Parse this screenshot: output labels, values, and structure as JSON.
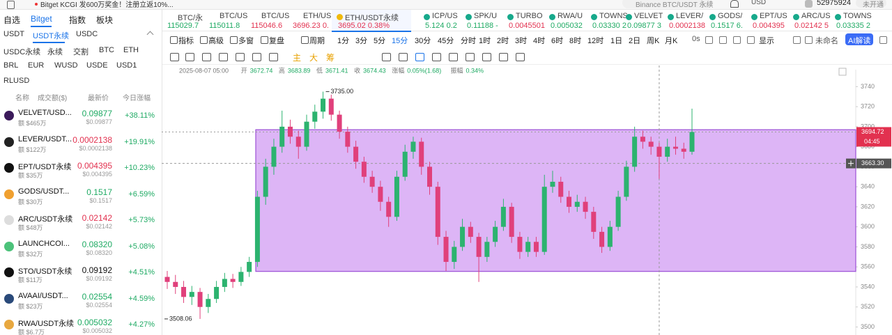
{
  "banner": {
    "notice": "Bitget KCGI 发600万奖金！注册立返10%...",
    "search": "Binance BTC/USDT 永续",
    "currency": "USD",
    "user_id": "52975924",
    "status": "未开通"
  },
  "sidebar": {
    "tabs": [
      "自选",
      "Bitget",
      "指数",
      "板块"
    ],
    "markets": [
      [
        "USDT",
        "USDT永续",
        "USDC"
      ],
      [
        "USDC永续",
        "永续",
        "交割",
        "BTC",
        "ETH"
      ],
      [
        "BRL",
        "EUR",
        "WUSD",
        "USDE",
        "USD1"
      ],
      [
        "RLUSD"
      ]
    ],
    "columns": [
      "名称",
      "成交额($)",
      "最新价",
      "今日涨幅"
    ],
    "list": [
      {
        "symbol": "VELVET/USD...",
        "volume": "额 $465万",
        "price": "0.09877",
        "price_usd": "$0.09877",
        "change": "+38.11%",
        "price_color": "#1eaa63",
        "icon": "#3b1a5a"
      },
      {
        "symbol": "LEVER/USDT...",
        "volume": "额 $122万",
        "price": "0.0002138",
        "price_usd": "$0.0002138",
        "change": "+19.91%",
        "price_color": "#e2314f",
        "icon": "#222222"
      },
      {
        "symbol": "EPT/USDT永续",
        "volume": "额 $35万",
        "price": "0.004395",
        "price_usd": "$0.004395",
        "change": "+10.23%",
        "price_color": "#e2314f",
        "icon": "#111111"
      },
      {
        "symbol": "GODS/USDT...",
        "volume": "额 $30万",
        "price": "0.1517",
        "price_usd": "$0.1517",
        "change": "+6.59%",
        "price_color": "#1eaa63",
        "icon": "#f0a030"
      },
      {
        "symbol": "ARC/USDT永续",
        "volume": "额 $48万",
        "price": "0.02142",
        "price_usd": "$0.02142",
        "change": "+5.73%",
        "price_color": "#e2314f",
        "icon": "#dddddd"
      },
      {
        "symbol": "LAUNCHCOI...",
        "volume": "额 $32万",
        "price": "0.08320",
        "price_usd": "$0.08320",
        "change": "+5.08%",
        "price_color": "#1eaa63",
        "icon": "#4cc27a"
      },
      {
        "symbol": "STO/USDT永续",
        "volume": "额 $11万",
        "price": "0.09192",
        "price_usd": "$0.09192",
        "change": "+4.51%",
        "price_color": "#111111",
        "icon": "#111111"
      },
      {
        "symbol": "AVAAI/USDT...",
        "volume": "额 $23万",
        "price": "0.02554",
        "price_usd": "$0.02554",
        "change": "+4.59%",
        "price_color": "#1eaa63",
        "icon": "#2a4a7a"
      },
      {
        "symbol": "RWA/USDT永续",
        "volume": "额 $6.7万",
        "price": "0.005032",
        "price_usd": "$0.005032",
        "change": "+4.27%",
        "price_color": "#1eaa63",
        "icon": "#e8a840"
      }
    ]
  },
  "tickers": [
    {
      "symbol": "BTC/永",
      "price": "115029.7",
      "color": "#1eaa63"
    },
    {
      "symbol": "BTC/US",
      "price": "115011.8",
      "color": "#1eaa63"
    },
    {
      "symbol": "BTC/US",
      "price": "115046.6",
      "color": "#e2314f"
    },
    {
      "symbol": "ETH/US",
      "price": "3696.23 0.",
      "color": "#e2314f"
    },
    {
      "symbol": "ETH/USDT永续",
      "price": "3695.02  0.38%",
      "color": "#e2314f"
    },
    {
      "symbol": "ICP/US",
      "price": "5.124 0.2",
      "color": "#1eaa63"
    },
    {
      "symbol": "SPK/U",
      "price": "0.11188 -",
      "color": "#1eaa63"
    },
    {
      "symbol": "TURBO",
      "price": "0.0045501",
      "color": "#e2314f"
    },
    {
      "symbol": "RWA/U",
      "price": "0.005032",
      "color": "#1eaa63"
    },
    {
      "symbol": "TOWNS",
      "price": "0.03330 2",
      "color": "#1eaa63"
    },
    {
      "symbol": "VELVET",
      "price": "0.09877 3",
      "color": "#1eaa63"
    },
    {
      "symbol": "LEVER/",
      "price": "0.0002138",
      "color": "#e2314f"
    },
    {
      "symbol": "GODS/",
      "price": "0.1517 6.",
      "color": "#1eaa63"
    },
    {
      "symbol": "EPT/US",
      "price": "0.004395",
      "color": "#e2314f"
    },
    {
      "symbol": "ARC/US",
      "price": "0.02142 5",
      "color": "#e2314f"
    },
    {
      "symbol": "TOWNS",
      "price": "0.03335 2",
      "color": "#1eaa63"
    }
  ],
  "toolbar": {
    "buttons": [
      "指标",
      "高级",
      "多窗",
      "复盘",
      "周期"
    ],
    "intervals": [
      "1分",
      "3分",
      "5分",
      "15分",
      "30分",
      "45分",
      "分时",
      "1时",
      "2时",
      "3时",
      "4时",
      "6时",
      "8时",
      "12时",
      "1日",
      "2日",
      "周K",
      "月K"
    ],
    "right": [
      "0s",
      "显示",
      "未命名",
      "AI解读"
    ],
    "draw_tools": [
      "主",
      "大",
      "筹"
    ]
  },
  "info": {
    "time": "2025-08-07 05:00",
    "items": [
      {
        "label": "开",
        "value": "3672.74"
      },
      {
        "label": "高",
        "value": "3683.89"
      },
      {
        "label": "低",
        "value": "3671.41"
      },
      {
        "label": "收",
        "value": "3674.43"
      },
      {
        "label": "涨幅",
        "value": "0.05%(1.68)"
      },
      {
        "label": "振幅",
        "value": "0.34%"
      }
    ]
  },
  "chart_data": {
    "type": "candlestick",
    "up_color": "#2cb36f",
    "down_color": "#e0407b",
    "ylim": [
      3492,
      3750
    ],
    "yticks": [
      3740,
      3720,
      3700,
      3680,
      3660,
      3640,
      3620,
      3600,
      3580,
      3560,
      3540,
      3520,
      3500
    ],
    "candles": [
      [
        3550,
        3556,
        3538,
        3545
      ],
      [
        3545,
        3552,
        3533,
        3540
      ],
      [
        3540,
        3546,
        3524,
        3530
      ],
      [
        3530,
        3541,
        3522,
        3535
      ],
      [
        3535,
        3539,
        3508.06,
        3520
      ],
      [
        3520,
        3533,
        3514,
        3528
      ],
      [
        3528,
        3546,
        3524,
        3540
      ],
      [
        3540,
        3554,
        3535,
        3548
      ],
      [
        3548,
        3553,
        3539,
        3545
      ],
      [
        3545,
        3560,
        3541,
        3555
      ],
      [
        3555,
        3570,
        3550,
        3565
      ],
      [
        3565,
        3636,
        3560,
        3630
      ],
      [
        3630,
        3668,
        3622,
        3660
      ],
      [
        3660,
        3688,
        3652,
        3680
      ],
      [
        3680,
        3716,
        3674,
        3700
      ],
      [
        3700,
        3707,
        3683,
        3690
      ],
      [
        3690,
        3696,
        3668,
        3680
      ],
      [
        3680,
        3712,
        3676,
        3705
      ],
      [
        3705,
        3722,
        3698,
        3715
      ],
      [
        3715,
        3735,
        3708,
        3728
      ],
      [
        3728,
        3732,
        3706,
        3712
      ],
      [
        3712,
        3716,
        3688,
        3695
      ],
      [
        3695,
        3700,
        3674,
        3680
      ],
      [
        3680,
        3686,
        3658,
        3665
      ],
      [
        3665,
        3670,
        3644,
        3650
      ],
      [
        3650,
        3656,
        3634,
        3640
      ],
      [
        3640,
        3646,
        3616,
        3625
      ],
      [
        3625,
        3630,
        3600,
        3610
      ],
      [
        3610,
        3656,
        3606,
        3650
      ],
      [
        3650,
        3682,
        3646,
        3675
      ],
      [
        3675,
        3690,
        3668,
        3685
      ],
      [
        3685,
        3689,
        3652,
        3660
      ],
      [
        3660,
        3665,
        3632,
        3640
      ],
      [
        3640,
        3645,
        3582,
        3590
      ],
      [
        3590,
        3596,
        3556,
        3565
      ],
      [
        3565,
        3586,
        3558,
        3580
      ],
      [
        3580,
        3608,
        3576,
        3600
      ],
      [
        3600,
        3605,
        3584,
        3590
      ],
      [
        3590,
        3594,
        3545,
        3570
      ],
      [
        3570,
        3590,
        3565,
        3585
      ],
      [
        3585,
        3606,
        3580,
        3600
      ],
      [
        3600,
        3628,
        3596,
        3620
      ],
      [
        3620,
        3624,
        3584,
        3590
      ],
      [
        3590,
        3595,
        3568,
        3575
      ],
      [
        3575,
        3590,
        3570,
        3585
      ],
      [
        3585,
        3590,
        3570,
        3575
      ],
      [
        3575,
        3652,
        3572,
        3640
      ],
      [
        3640,
        3656,
        3634,
        3645
      ],
      [
        3645,
        3650,
        3624,
        3630
      ],
      [
        3630,
        3636,
        3614,
        3620
      ],
      [
        3620,
        3632,
        3615,
        3625
      ],
      [
        3625,
        3630,
        3608,
        3615
      ],
      [
        3615,
        3620,
        3588,
        3595
      ],
      [
        3595,
        3600,
        3574,
        3580
      ],
      [
        3580,
        3606,
        3576,
        3600
      ],
      [
        3600,
        3636,
        3596,
        3630
      ],
      [
        3630,
        3666,
        3626,
        3660
      ],
      [
        3660,
        3700,
        3655,
        3690
      ],
      [
        3690,
        3696,
        3678,
        3685
      ],
      [
        3685,
        3690,
        3672,
        3680
      ],
      [
        3680,
        3684,
        3648,
        3670
      ],
      [
        3670,
        3688,
        3665,
        3680
      ],
      [
        3680,
        3690,
        3672,
        3678
      ],
      [
        3678,
        3684,
        3668,
        3675
      ],
      [
        3675,
        3718,
        3672,
        3694.72
      ]
    ],
    "zone": {
      "top": 3697,
      "bottom": 3555.5,
      "fill": "#d7a8f5",
      "stroke": "#9b4fd6"
    },
    "last_price": 3694.72,
    "countdown": "04:45",
    "crosshair": {
      "value": 3663.3,
      "label": "3663.30"
    },
    "high_label": {
      "value": 3735,
      "label": "3735.00"
    },
    "low_label": {
      "value": 3508.06,
      "label": "3508.06"
    }
  }
}
